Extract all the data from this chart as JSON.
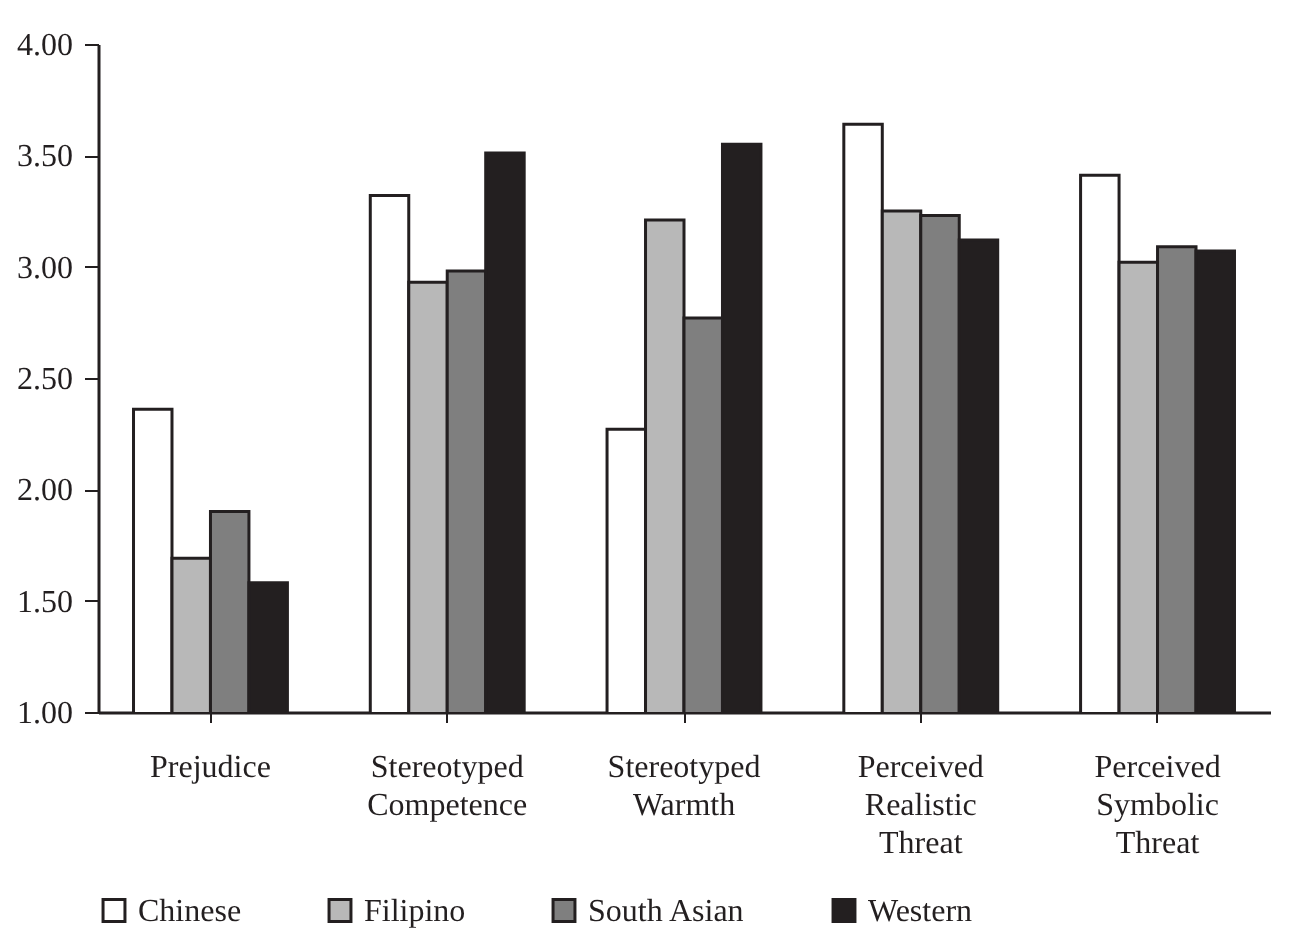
{
  "chart_data": {
    "type": "bar",
    "categories": [
      "Prejudice",
      "Stereotyped Competence",
      "Stereotyped Warmth",
      "Perceived Realistic Threat",
      "Perceived Symbolic Threat"
    ],
    "series": [
      {
        "name": "Chinese",
        "color": "#ffffff",
        "values": [
          2.36,
          3.32,
          2.27,
          3.64,
          3.41
        ]
      },
      {
        "name": "Filipino",
        "color": "#b8b8b8",
        "values": [
          1.69,
          2.93,
          3.21,
          3.25,
          3.02
        ]
      },
      {
        "name": "South Asian",
        "color": "#7f7f7f",
        "values": [
          1.9,
          2.98,
          2.77,
          3.23,
          3.09
        ]
      },
      {
        "name": "Western",
        "color": "#231f20",
        "values": [
          1.58,
          3.51,
          3.55,
          3.12,
          3.07
        ]
      }
    ],
    "ylim": [
      1.0,
      4.0
    ],
    "yticks": [
      {
        "value": 1.0,
        "label": "1.00"
      },
      {
        "value": 1.5,
        "label": "1.50"
      },
      {
        "value": 2.0,
        "label": "2.00"
      },
      {
        "value": 2.5,
        "label": "2.50"
      },
      {
        "value": 3.0,
        "label": "3.00"
      },
      {
        "value": 3.5,
        "label": "3.50"
      },
      {
        "value": 4.0,
        "label": "4.00"
      }
    ],
    "legend": "bottom",
    "grid": false
  }
}
